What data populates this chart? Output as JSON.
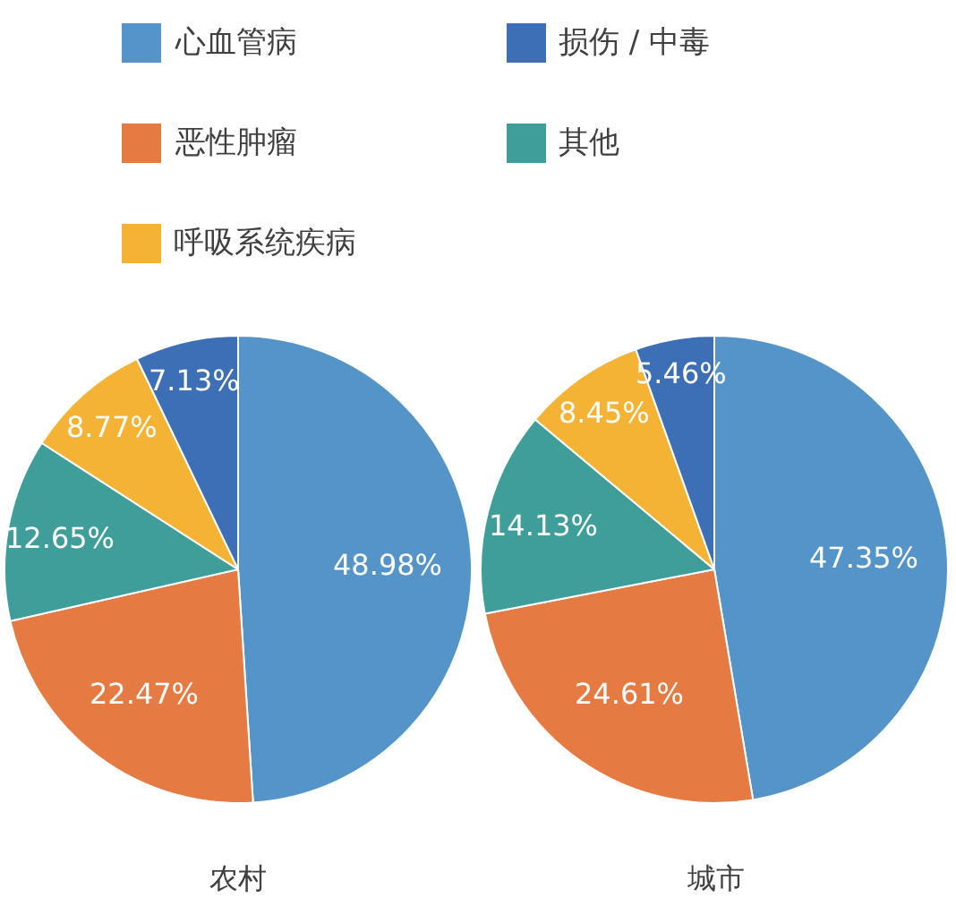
{
  "chart_data": {
    "type": "pie",
    "categories": [
      "心血管病",
      "恶性肿瘤",
      "其他",
      "呼吸系统疾病",
      "损伤 / 中毒"
    ],
    "colors": [
      "#5594c8",
      "#e57a42",
      "#3f9e99",
      "#f5b335",
      "#3d6fb6"
    ],
    "legend": "top",
    "series": [
      {
        "name": "农村",
        "values": [
          48.98,
          22.47,
          12.65,
          8.77,
          7.13
        ],
        "value_labels": [
          "48.98%",
          "22.47%",
          "12.65%",
          "8.77%",
          "7.13%"
        ]
      },
      {
        "name": "城市",
        "values": [
          47.35,
          24.61,
          14.13,
          8.45,
          5.46
        ],
        "value_labels": [
          "47.35%",
          "24.61%",
          "14.13%",
          "8.45%",
          "5.46%"
        ]
      }
    ]
  }
}
